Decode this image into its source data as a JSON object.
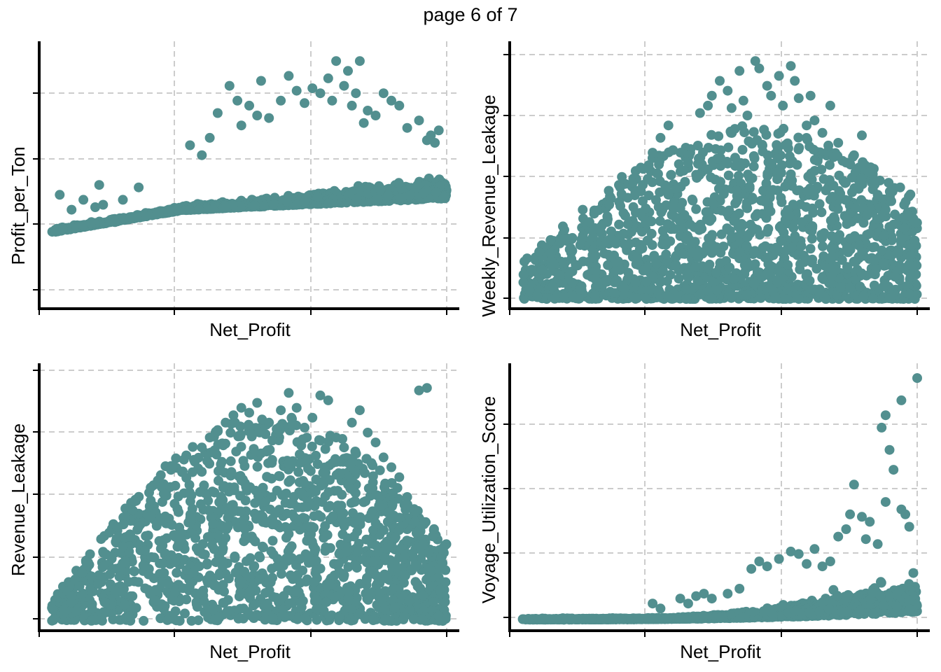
{
  "page": {
    "title": "page 6 of 7"
  },
  "style": {
    "point_color": "#528f8f",
    "grid_color": "#cccccc",
    "axis_color": "#000000"
  },
  "chart_data": [
    {
      "type": "scatter",
      "xlabel": "Net_Profit",
      "ylabel": "Profit_per_Ton",
      "grid": true,
      "tick_labels_shown": false,
      "pattern": "profit_per_ton",
      "points": [
        [
          0.02,
          0.42
        ],
        [
          0.05,
          0.36
        ],
        [
          0.08,
          0.4
        ],
        [
          0.1,
          0.31
        ],
        [
          0.11,
          0.37
        ],
        [
          0.12,
          0.46
        ],
        [
          0.13,
          0.38
        ],
        [
          0.16,
          0.31
        ],
        [
          0.18,
          0.4
        ],
        [
          0.2,
          0.33
        ],
        [
          0.22,
          0.45
        ],
        [
          0.35,
          0.62
        ],
        [
          0.38,
          0.58
        ],
        [
          0.4,
          0.65
        ],
        [
          0.42,
          0.75
        ],
        [
          0.45,
          0.86
        ],
        [
          0.47,
          0.8
        ],
        [
          0.48,
          0.7
        ],
        [
          0.5,
          0.78
        ],
        [
          0.52,
          0.74
        ],
        [
          0.53,
          0.88
        ],
        [
          0.55,
          0.73
        ],
        [
          0.58,
          0.8
        ],
        [
          0.6,
          0.9
        ],
        [
          0.62,
          0.84
        ],
        [
          0.64,
          0.79
        ],
        [
          0.66,
          0.85
        ],
        [
          0.68,
          0.83
        ],
        [
          0.7,
          0.89
        ],
        [
          0.71,
          0.8
        ],
        [
          0.72,
          0.96
        ],
        [
          0.74,
          0.86
        ],
        [
          0.75,
          0.92
        ],
        [
          0.76,
          0.78
        ],
        [
          0.77,
          0.83
        ],
        [
          0.78,
          0.96
        ],
        [
          0.79,
          0.71
        ],
        [
          0.8,
          0.76
        ],
        [
          0.82,
          0.74
        ],
        [
          0.84,
          0.83
        ],
        [
          0.86,
          0.8
        ],
        [
          0.88,
          0.78
        ],
        [
          0.9,
          0.69
        ],
        [
          0.93,
          0.72
        ],
        [
          0.95,
          0.64
        ],
        [
          0.96,
          0.66
        ],
        [
          0.97,
          0.63
        ],
        [
          0.98,
          0.68
        ]
      ]
    },
    {
      "type": "scatter",
      "xlabel": "Net_Profit",
      "ylabel": "Weekly_Revenue_Leakage",
      "grid": true,
      "tick_labels_shown": false,
      "pattern": "weekly_revenue_leakage",
      "points": [
        [
          0.12,
          0.2
        ],
        [
          0.15,
          0.24
        ],
        [
          0.17,
          0.31
        ],
        [
          0.22,
          0.38
        ],
        [
          0.28,
          0.47
        ],
        [
          0.3,
          0.53
        ],
        [
          0.33,
          0.59
        ],
        [
          0.35,
          0.65
        ],
        [
          0.37,
          0.7
        ],
        [
          0.42,
          0.55
        ],
        [
          0.45,
          0.75
        ],
        [
          0.47,
          0.78
        ],
        [
          0.48,
          0.82
        ],
        [
          0.5,
          0.88
        ],
        [
          0.52,
          0.84
        ],
        [
          0.53,
          0.77
        ],
        [
          0.55,
          0.92
        ],
        [
          0.56,
          0.8
        ],
        [
          0.57,
          0.74
        ],
        [
          0.59,
          0.96
        ],
        [
          0.6,
          0.93
        ],
        [
          0.62,
          0.86
        ],
        [
          0.63,
          0.82
        ],
        [
          0.65,
          0.9
        ],
        [
          0.66,
          0.78
        ],
        [
          0.68,
          0.94
        ],
        [
          0.69,
          0.88
        ],
        [
          0.7,
          0.81
        ],
        [
          0.72,
          0.7
        ],
        [
          0.73,
          0.82
        ],
        [
          0.74,
          0.72
        ],
        [
          0.76,
          0.67
        ],
        [
          0.78,
          0.78
        ],
        [
          0.8,
          0.63
        ],
        [
          0.82,
          0.55
        ],
        [
          0.84,
          0.58
        ],
        [
          0.86,
          0.66
        ],
        [
          0.88,
          0.51
        ],
        [
          0.89,
          0.48
        ],
        [
          0.9,
          0.42
        ],
        [
          0.92,
          0.36
        ],
        [
          0.94,
          0.3
        ],
        [
          0.96,
          0.24
        ],
        [
          0.98,
          0.14
        ],
        [
          0.99,
          0.01
        ],
        [
          0.98,
          0.02
        ]
      ]
    },
    {
      "type": "scatter",
      "xlabel": "Net_Profit",
      "ylabel": "Revenue_Leakage",
      "grid": true,
      "tick_labels_shown": false,
      "pattern": "revenue_leakage",
      "points": [
        [
          0.05,
          0.1
        ],
        [
          0.07,
          0.14
        ],
        [
          0.1,
          0.18
        ],
        [
          0.13,
          0.22
        ],
        [
          0.15,
          0.26
        ],
        [
          0.18,
          0.3
        ],
        [
          0.2,
          0.34
        ],
        [
          0.22,
          0.38
        ],
        [
          0.25,
          0.42
        ],
        [
          0.28,
          0.48
        ],
        [
          0.3,
          0.54
        ],
        [
          0.33,
          0.6
        ],
        [
          0.36,
          0.65
        ],
        [
          0.38,
          0.7
        ],
        [
          0.4,
          0.74
        ],
        [
          0.42,
          0.77
        ],
        [
          0.44,
          0.8
        ],
        [
          0.46,
          0.83
        ],
        [
          0.48,
          0.86
        ],
        [
          0.5,
          0.84
        ],
        [
          0.52,
          0.88
        ],
        [
          0.55,
          0.8
        ],
        [
          0.58,
          0.85
        ],
        [
          0.6,
          0.92
        ],
        [
          0.62,
          0.86
        ],
        [
          0.64,
          0.78
        ],
        [
          0.66,
          0.82
        ],
        [
          0.68,
          0.91
        ],
        [
          0.7,
          0.89
        ],
        [
          0.72,
          0.74
        ],
        [
          0.74,
          0.7
        ],
        [
          0.76,
          0.8
        ],
        [
          0.78,
          0.85
        ],
        [
          0.8,
          0.76
        ],
        [
          0.82,
          0.72
        ],
        [
          0.84,
          0.66
        ],
        [
          0.86,
          0.62
        ],
        [
          0.88,
          0.58
        ],
        [
          0.9,
          0.5
        ],
        [
          0.92,
          0.4
        ],
        [
          0.94,
          0.31
        ],
        [
          0.96,
          0.2
        ],
        [
          0.98,
          0.02
        ],
        [
          0.99,
          0.0
        ],
        [
          0.95,
          0.94
        ],
        [
          0.93,
          0.93
        ]
      ]
    },
    {
      "type": "scatter",
      "xlabel": "Net_Profit",
      "ylabel": "Voyage_Utilization_Score",
      "grid": true,
      "tick_labels_shown": false,
      "pattern": "voyage_utilization_score",
      "points": [
        [
          0.33,
          0.07
        ],
        [
          0.35,
          0.05
        ],
        [
          0.4,
          0.09
        ],
        [
          0.42,
          0.07
        ],
        [
          0.44,
          0.1
        ],
        [
          0.46,
          0.11
        ],
        [
          0.48,
          0.09
        ],
        [
          0.52,
          0.11
        ],
        [
          0.55,
          0.13
        ],
        [
          0.58,
          0.21
        ],
        [
          0.6,
          0.24
        ],
        [
          0.62,
          0.22
        ],
        [
          0.65,
          0.25
        ],
        [
          0.68,
          0.28
        ],
        [
          0.7,
          0.27
        ],
        [
          0.72,
          0.23
        ],
        [
          0.74,
          0.29
        ],
        [
          0.76,
          0.22
        ],
        [
          0.78,
          0.24
        ],
        [
          0.8,
          0.34
        ],
        [
          0.82,
          0.37
        ],
        [
          0.83,
          0.43
        ],
        [
          0.84,
          0.55
        ],
        [
          0.86,
          0.42
        ],
        [
          0.87,
          0.33
        ],
        [
          0.88,
          0.4
        ],
        [
          0.9,
          0.31
        ],
        [
          0.92,
          0.48
        ],
        [
          0.93,
          0.69
        ],
        [
          0.94,
          0.61
        ],
        [
          0.96,
          0.45
        ],
        [
          0.97,
          0.43
        ],
        [
          0.98,
          0.38
        ],
        [
          1.0,
          0.98
        ],
        [
          0.96,
          0.89
        ],
        [
          0.92,
          0.83
        ],
        [
          0.91,
          0.78
        ]
      ]
    }
  ]
}
